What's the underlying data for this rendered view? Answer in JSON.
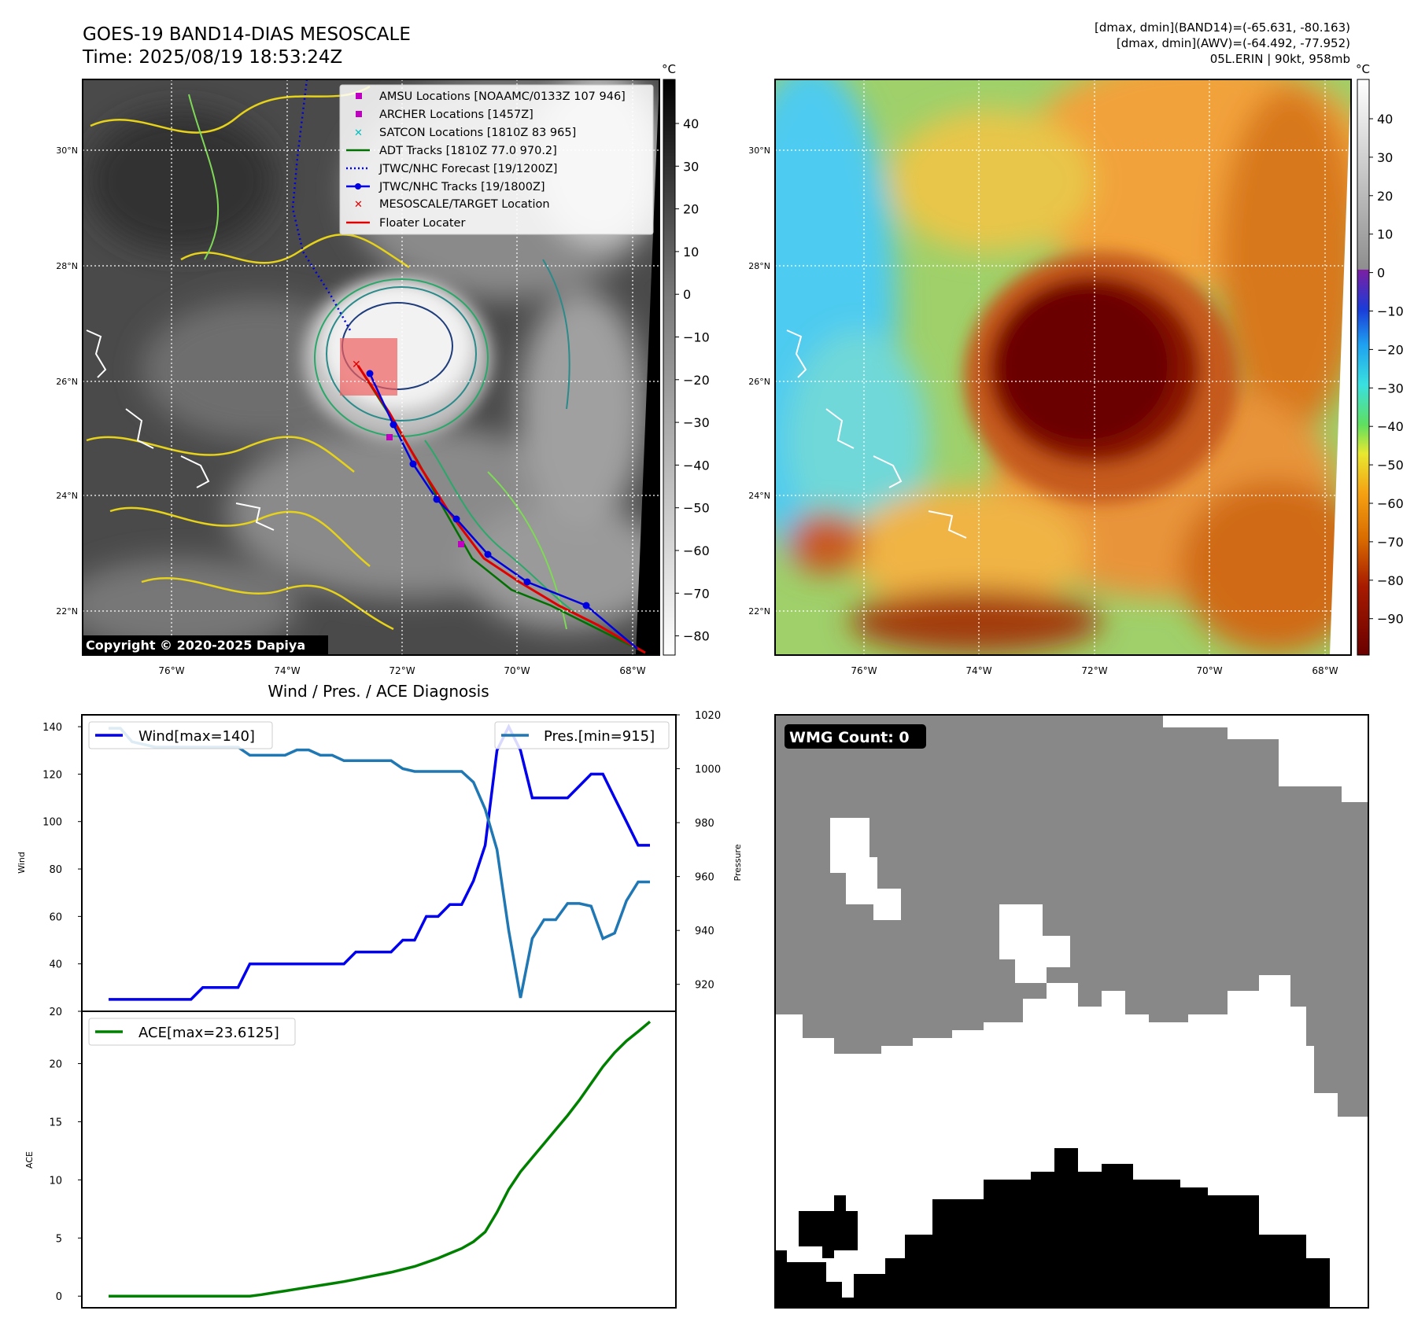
{
  "header": {
    "title_line1": "GOES-19 BAND14-DIAS MESOSCALE",
    "title_line2": "Time: 2025/08/19 18:53:24Z",
    "info_line1": "[dmax, dmin](BAND14)=(-65.631, -80.163)",
    "info_line2": "[dmax, dmin](AWV)=(-64.492, -77.952)",
    "info_line3": "05L.ERIN | 90kt, 958mb"
  },
  "copyright": "Copyright © 2020-2025 Dapiya",
  "legend_map": [
    {
      "label": "AMSU Locations [NOAAMC/0133Z 107 946]",
      "marker": "square",
      "color": "#c000c0"
    },
    {
      "label": "ARCHER Locations [1457Z]",
      "marker": "square",
      "color": "#c000c0"
    },
    {
      "label": "SATCON Locations [1810Z 83 965]",
      "marker": "x",
      "color": "#00c0c0"
    },
    {
      "label": "ADT Tracks [1810Z 77.0 970.2]",
      "marker": "line",
      "color": "#007000"
    },
    {
      "label": "JTWC/NHC Forecast [19/1200Z]",
      "marker": "dotted",
      "color": "#0000e0"
    },
    {
      "label": "JTWC/NHC Tracks [19/1800Z]",
      "marker": "line-dot",
      "color": "#0000e0"
    },
    {
      "label": "MESOSCALE/TARGET Location",
      "marker": "x",
      "color": "#e00000"
    },
    {
      "label": "Floater Locater",
      "marker": "line",
      "color": "#e00000"
    }
  ],
  "map_axes": {
    "lon_ticks": [
      "76°W",
      "74°W",
      "72°W",
      "70°W",
      "68°W"
    ],
    "lat_ticks": [
      "30°N",
      "28°N",
      "26°N",
      "24°N",
      "22°N"
    ]
  },
  "colorbar_ir": {
    "unit": "°C",
    "ticks": [
      "40",
      "30",
      "20",
      "10",
      "0",
      "−10",
      "−20",
      "−30",
      "−40",
      "−50",
      "−60",
      "−70",
      "−80"
    ]
  },
  "colorbar_color": {
    "unit": "°C",
    "ticks": [
      "40",
      "30",
      "20",
      "10",
      "0",
      "−10",
      "−20",
      "−30",
      "−40",
      "−50",
      "−60",
      "−70",
      "−80",
      "−90"
    ]
  },
  "colors": {
    "wind": "#0000ee",
    "pressure": "#1f77b4",
    "ace": "#008000",
    "wmg_gray": "#888888"
  },
  "wmg": {
    "label": "WMG Count: 0"
  },
  "chart_data": [
    {
      "type": "line",
      "title": "Wind / Pres. / ACE Diagnosis",
      "ylabel": "Wind",
      "y2label": "Pressure",
      "ylim": [
        20,
        145
      ],
      "y2lim": [
        910,
        1020
      ],
      "y_ticks": [
        20,
        40,
        60,
        80,
        100,
        120,
        140
      ],
      "y2_ticks": [
        920,
        940,
        960,
        980,
        1000,
        1020
      ],
      "series": [
        {
          "name": "Wind[max=140]",
          "axis": "left",
          "values": [
            25,
            25,
            25,
            25,
            25,
            25,
            25,
            25,
            30,
            30,
            30,
            30,
            40,
            40,
            40,
            40,
            40,
            40,
            40,
            40,
            40,
            45,
            45,
            45,
            45,
            50,
            50,
            60,
            60,
            65,
            65,
            75,
            90,
            130,
            140,
            130,
            110,
            110,
            110,
            110,
            115,
            120,
            120,
            110,
            100,
            90,
            90
          ]
        },
        {
          "name": "Pres.[min=915]",
          "axis": "right",
          "values": [
            1015,
            1015,
            1010,
            1009,
            1008,
            1008,
            1008,
            1008,
            1008,
            1008,
            1008,
            1008,
            1005,
            1005,
            1005,
            1005,
            1007,
            1007,
            1005,
            1005,
            1003,
            1003,
            1003,
            1003,
            1003,
            1000,
            999,
            999,
            999,
            999,
            999,
            995,
            985,
            970,
            940,
            915,
            937,
            944,
            944,
            950,
            950,
            949,
            937,
            939,
            951,
            958,
            958
          ]
        }
      ]
    },
    {
      "type": "line",
      "ylabel": "ACE",
      "ylim": [
        -1,
        24.5
      ],
      "y_ticks": [
        0,
        5,
        10,
        15,
        20
      ],
      "series": [
        {
          "name": "ACE[max=23.6125]",
          "values": [
            0,
            0,
            0,
            0,
            0,
            0,
            0,
            0,
            0,
            0,
            0,
            0,
            0,
            0.13,
            0.29,
            0.45,
            0.61,
            0.77,
            0.93,
            1.09,
            1.25,
            1.45,
            1.65,
            1.85,
            2.05,
            2.3,
            2.55,
            2.9,
            3.26,
            3.68,
            4.1,
            4.68,
            5.52,
            7.22,
            9.18,
            10.7,
            11.91,
            13.12,
            14.33,
            15.54,
            16.86,
            18.3,
            19.74,
            20.95,
            21.95,
            22.76,
            23.61
          ]
        }
      ]
    }
  ]
}
